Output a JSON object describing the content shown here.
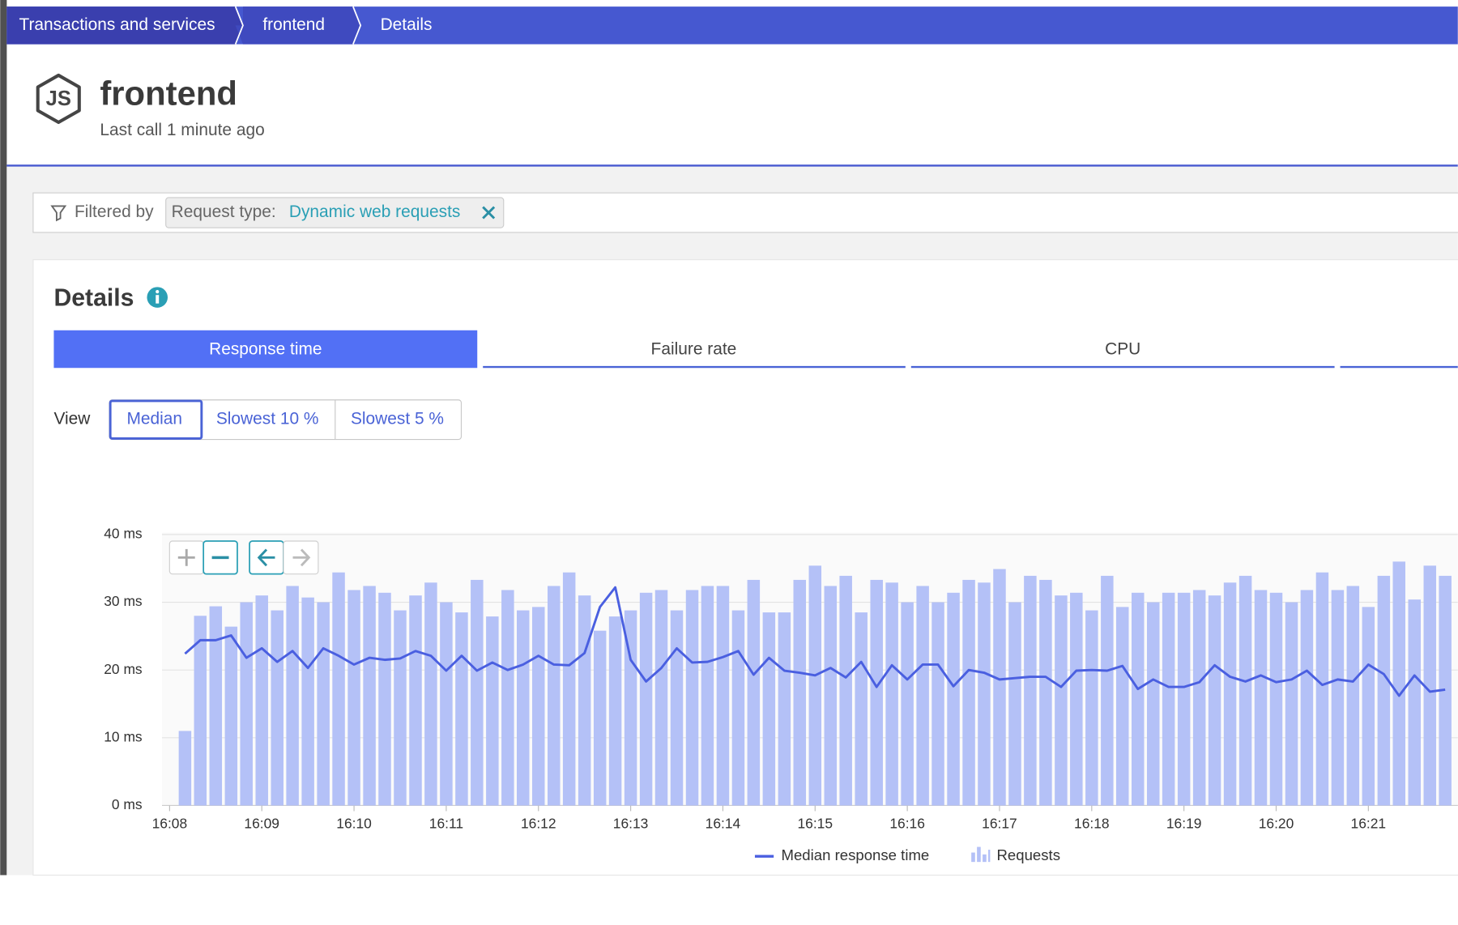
{
  "breadcrumb": [
    "Transactions and services",
    "frontend",
    "Details"
  ],
  "header": {
    "icon_label": "JS",
    "title": "frontend",
    "subtitle": "Last call 1 minute ago"
  },
  "filter": {
    "label": "Filtered by",
    "chip_key": "Request type:",
    "chip_value": "Dynamic web requests"
  },
  "details": {
    "title": "Details",
    "tabs": [
      "Response time",
      "Failure rate",
      "CPU"
    ],
    "view_label": "View",
    "view_options": [
      "Median",
      "Slowest 10 %",
      "Slowest 5 %"
    ]
  },
  "chart_data": {
    "type": "combo",
    "x": [
      8.167,
      8.333,
      8.5,
      8.667,
      8.833,
      9,
      9.167,
      9.333,
      9.5,
      9.667,
      9.833,
      10,
      10.167,
      10.333,
      10.5,
      10.667,
      10.833,
      11,
      11.167,
      11.333,
      11.5,
      11.667,
      11.833,
      12,
      12.167,
      12.333,
      12.5,
      12.667,
      12.833,
      13,
      13.167,
      13.333,
      13.5,
      13.667,
      13.833,
      14,
      14.167,
      14.333,
      14.5,
      14.667,
      14.833,
      15,
      15.167,
      15.333,
      15.5,
      15.667,
      15.833,
      16,
      16.167,
      16.333,
      16.5,
      16.667,
      16.833,
      17,
      17.167,
      17.333,
      17.5,
      17.667,
      17.833,
      18,
      18.167,
      18.333,
      18.5,
      18.667,
      18.833,
      19,
      19.167,
      19.333,
      19.5,
      19.667,
      19.833,
      20,
      20.167,
      20.333,
      20.5,
      20.667,
      20.833,
      21,
      21.167,
      21.333,
      21.5,
      21.667,
      21.833
    ],
    "series": [
      {
        "name": "Median response time",
        "type": "line",
        "color": "#4a5fe0",
        "values": [
          22.4,
          24.4,
          24.4,
          25.1,
          21.8,
          23.2,
          21.2,
          22.8,
          20.3,
          23.2,
          22.1,
          20.8,
          21.8,
          21.5,
          21.7,
          22.8,
          22.1,
          19.9,
          22.1,
          19.9,
          21.1,
          20,
          20.8,
          22.1,
          20.8,
          20.7,
          22.5,
          29.3,
          32.2,
          21.5,
          18.3,
          20.3,
          23.2,
          21.1,
          21.2,
          21.9,
          22.8,
          19.3,
          21.8,
          19.9,
          19.6,
          19.2,
          20.3,
          18.9,
          21.2,
          17.5,
          20.7,
          18.6,
          20.8,
          20.8,
          17.6,
          20,
          19.6,
          18.6,
          18.8,
          19,
          19,
          17.5,
          19.9,
          20,
          19.9,
          20.6,
          17.2,
          18.6,
          17.5,
          17.5,
          18.2,
          20.7,
          19,
          18.3,
          19.2,
          18.2,
          18.6,
          19.9,
          17.8,
          18.6,
          18.3,
          20.8,
          19.4,
          16.2,
          19.2,
          16.8,
          17.1
        ]
      },
      {
        "name": "Requests",
        "type": "bar",
        "color": "#b4c1f7",
        "values": [
          11,
          28,
          29.4,
          26.4,
          30,
          31,
          28.8,
          32.4,
          30.7,
          30,
          34.4,
          31.8,
          32.4,
          31.4,
          28.8,
          31,
          32.9,
          30,
          28.5,
          33.3,
          27.9,
          31.8,
          28.8,
          29.3,
          32.4,
          34.4,
          31,
          25.8,
          27.9,
          28.8,
          31.4,
          31.8,
          28.8,
          31.8,
          32.4,
          32.4,
          28.8,
          33.3,
          28.5,
          28.5,
          33.3,
          35.4,
          32.4,
          33.9,
          28.5,
          33.3,
          32.9,
          30,
          32.4,
          30,
          31.4,
          33.3,
          32.9,
          34.9,
          30,
          33.9,
          33.3,
          31,
          31.4,
          28.8,
          33.9,
          29.3,
          31.4,
          30,
          31.4,
          31.4,
          31.8,
          31,
          32.9,
          33.9,
          31.8,
          31.4,
          30,
          31.8,
          34.4,
          31.8,
          32.4,
          29.3,
          33.9,
          36,
          30.4,
          35.4,
          33.9
        ]
      }
    ],
    "xlim": [
      7.918,
      21.97
    ],
    "xticks": [
      {
        "value": 8,
        "label": "16:08"
      },
      {
        "value": 9,
        "label": "16:09"
      },
      {
        "value": 10,
        "label": "16:10"
      },
      {
        "value": 11,
        "label": "16:11"
      },
      {
        "value": 12,
        "label": "16:12"
      },
      {
        "value": 13,
        "label": "16:13"
      },
      {
        "value": 14,
        "label": "16:14"
      },
      {
        "value": 15,
        "label": "16:15"
      },
      {
        "value": 16,
        "label": "16:16"
      },
      {
        "value": 17,
        "label": "16:17"
      },
      {
        "value": 18,
        "label": "16:18"
      },
      {
        "value": 19,
        "label": "16:19"
      },
      {
        "value": 20,
        "label": "16:20"
      },
      {
        "value": 21,
        "label": "16:21"
      }
    ],
    "ylim": [
      0,
      40
    ],
    "yticks": [
      {
        "value": 0,
        "label": "0 ms"
      },
      {
        "value": 10,
        "label": "10 ms"
      },
      {
        "value": 20,
        "label": "20 ms"
      },
      {
        "value": 30,
        "label": "30 ms"
      },
      {
        "value": 40,
        "label": "40 ms"
      }
    ],
    "grid": true
  }
}
